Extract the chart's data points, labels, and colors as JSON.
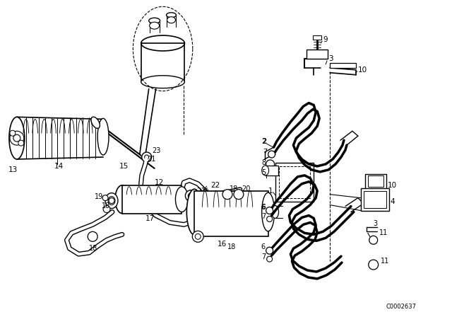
{
  "bg_color": "#ffffff",
  "line_color": "#000000",
  "watermark": "C0002637",
  "fig_width": 6.4,
  "fig_height": 4.48,
  "dpi": 100
}
